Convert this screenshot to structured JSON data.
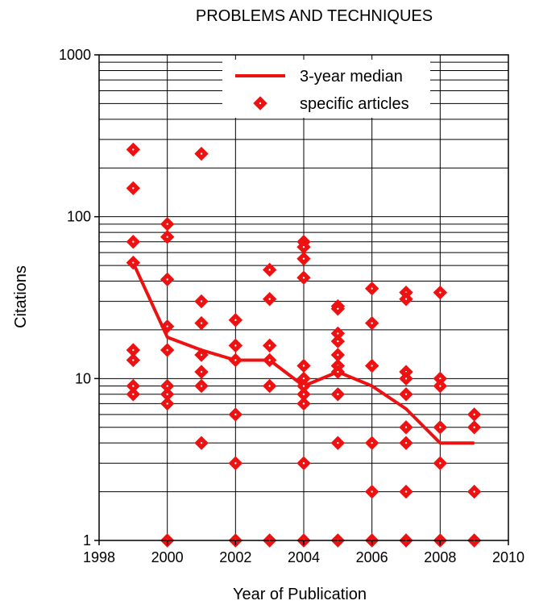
{
  "chart_data": {
    "type": "scatter",
    "title": "PROBLEMS AND TECHNIQUES",
    "xlabel": "Year of Publication",
    "ylabel": "Citations",
    "xlim": [
      1998,
      2010
    ],
    "ylim": [
      1,
      1000
    ],
    "yscale": "log",
    "grid": true,
    "legend_position": "top-right",
    "x_ticks": [
      "1998",
      "2000",
      "2002",
      "2004",
      "2006",
      "2008",
      "2010"
    ],
    "y_ticks": [
      "1",
      "10",
      "100",
      "1000"
    ],
    "colors": {
      "series": "#ee1111",
      "grid": "#000000"
    },
    "series": [
      {
        "name": "3-year median",
        "style": "line",
        "x": [
          1999,
          2000,
          2001,
          2002,
          2003,
          2004,
          2005,
          2006,
          2007,
          2008,
          2009
        ],
        "y": [
          52,
          18,
          15,
          13,
          13,
          9,
          11,
          9,
          6.5,
          4,
          4
        ]
      },
      {
        "name": "specific articles",
        "style": "diamond",
        "points": [
          [
            1999,
            260
          ],
          [
            1999,
            150
          ],
          [
            1999,
            70
          ],
          [
            1999,
            52
          ],
          [
            1999,
            15
          ],
          [
            1999,
            13
          ],
          [
            1999,
            9
          ],
          [
            1999,
            8
          ],
          [
            2000,
            90
          ],
          [
            2000,
            75
          ],
          [
            2000,
            41
          ],
          [
            2000,
            21
          ],
          [
            2000,
            15
          ],
          [
            2000,
            9
          ],
          [
            2000,
            8
          ],
          [
            2000,
            7
          ],
          [
            2000,
            1
          ],
          [
            2001,
            245
          ],
          [
            2001,
            30
          ],
          [
            2001,
            22
          ],
          [
            2001,
            14
          ],
          [
            2001,
            11
          ],
          [
            2001,
            9
          ],
          [
            2001,
            4
          ],
          [
            2002,
            23
          ],
          [
            2002,
            16
          ],
          [
            2002,
            13
          ],
          [
            2002,
            6
          ],
          [
            2002,
            3
          ],
          [
            2002,
            1
          ],
          [
            2003,
            47
          ],
          [
            2003,
            31
          ],
          [
            2003,
            16
          ],
          [
            2003,
            13
          ],
          [
            2003,
            9
          ],
          [
            2003,
            1
          ],
          [
            2004,
            70
          ],
          [
            2004,
            65
          ],
          [
            2004,
            55
          ],
          [
            2004,
            42
          ],
          [
            2004,
            12
          ],
          [
            2004,
            10
          ],
          [
            2004,
            9
          ],
          [
            2004,
            8
          ],
          [
            2004,
            7
          ],
          [
            2004,
            3
          ],
          [
            2004,
            1
          ],
          [
            2005,
            28
          ],
          [
            2005,
            27
          ],
          [
            2005,
            19
          ],
          [
            2005,
            17
          ],
          [
            2005,
            14
          ],
          [
            2005,
            12
          ],
          [
            2005,
            11
          ],
          [
            2005,
            8
          ],
          [
            2005,
            4
          ],
          [
            2005,
            1
          ],
          [
            2006,
            36
          ],
          [
            2006,
            22
          ],
          [
            2006,
            12
          ],
          [
            2006,
            4
          ],
          [
            2006,
            2
          ],
          [
            2006,
            1
          ],
          [
            2007,
            34
          ],
          [
            2007,
            31
          ],
          [
            2007,
            11
          ],
          [
            2007,
            10
          ],
          [
            2007,
            8
          ],
          [
            2007,
            5
          ],
          [
            2007,
            4
          ],
          [
            2007,
            2
          ],
          [
            2007,
            1
          ],
          [
            2008,
            34
          ],
          [
            2008,
            10
          ],
          [
            2008,
            9
          ],
          [
            2008,
            5
          ],
          [
            2008,
            3
          ],
          [
            2008,
            1
          ],
          [
            2009,
            6
          ],
          [
            2009,
            5
          ],
          [
            2009,
            2
          ],
          [
            2009,
            1
          ]
        ]
      }
    ]
  }
}
